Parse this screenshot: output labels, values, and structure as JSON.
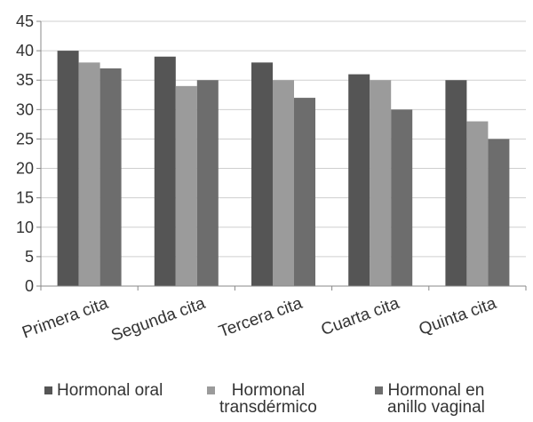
{
  "chart_data": {
    "type": "bar",
    "title": "",
    "xlabel": "",
    "ylabel": "",
    "ylim": [
      0,
      45
    ],
    "y_ticks": [
      "0",
      "5",
      "10",
      "15",
      "20",
      "25",
      "30",
      "35",
      "40",
      "45"
    ],
    "categories": [
      "Primera cita",
      "Segunda cita",
      "Tercera cita",
      "Cuarta cita",
      "Quinta cita"
    ],
    "series": [
      {
        "name": "Hormonal oral",
        "color": "#555555",
        "values": [
          40,
          39,
          38,
          36,
          35
        ]
      },
      {
        "name": "Hormonal\ntransdérmico",
        "color": "#9b9b9b",
        "values": [
          38,
          34,
          35,
          35,
          28
        ]
      },
      {
        "name": "Hormonal en\nanillo vaginal",
        "color": "#6d6d6d",
        "values": [
          37,
          35,
          32,
          30,
          25
        ]
      }
    ],
    "grid": true,
    "legend_position": "bottom"
  }
}
